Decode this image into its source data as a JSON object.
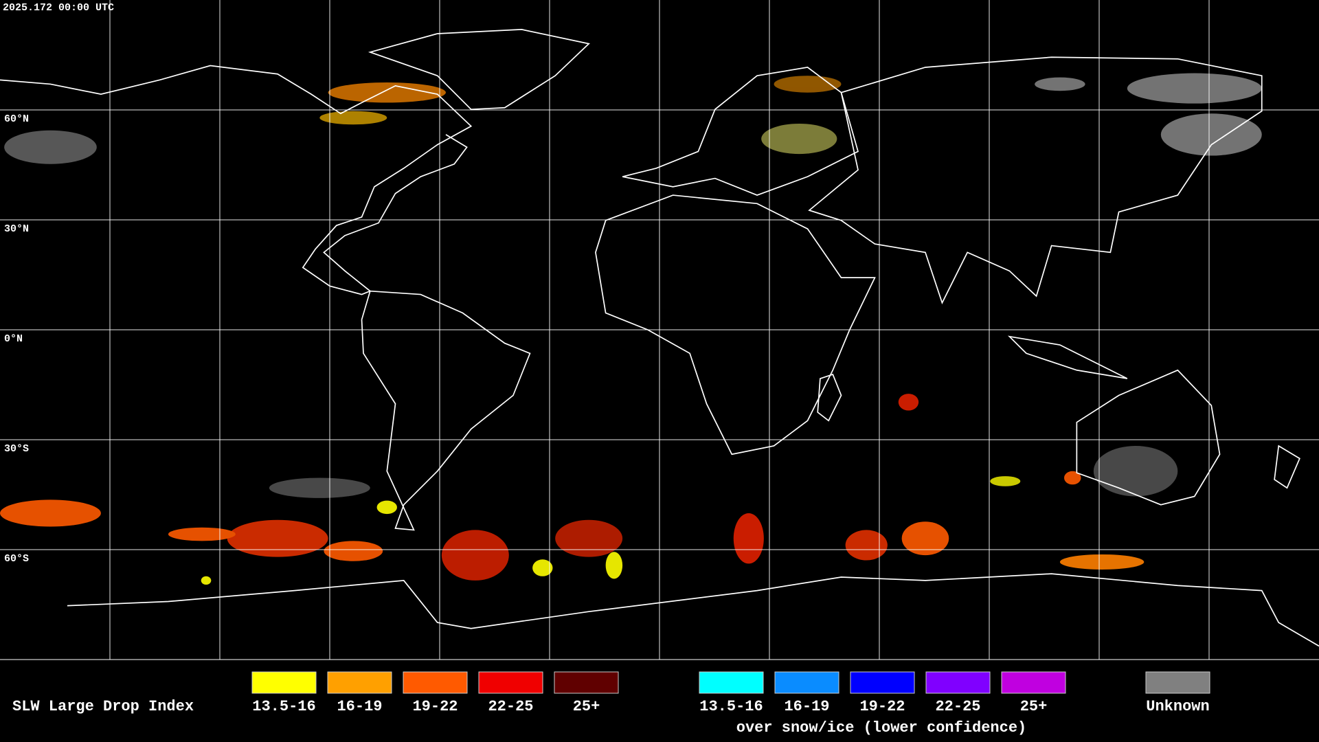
{
  "timestamp": "2025.172 00:00 UTC",
  "latitude_labels": [
    "60°N",
    "30°N",
    "0°N",
    "30°S",
    "60°S"
  ],
  "legend": {
    "title": "SLW Large Drop Index",
    "items": [
      {
        "label": "13.5-16",
        "color": "#ffff00"
      },
      {
        "label": "16-19",
        "color": "#ffa000"
      },
      {
        "label": "19-22",
        "color": "#ff5a00"
      },
      {
        "label": "22-25",
        "color": "#f00000"
      },
      {
        "label": "25+",
        "color": "#600000"
      }
    ],
    "snow_ice_items": [
      {
        "label": "13.5-16",
        "color": "#00ffff"
      },
      {
        "label": "16-19",
        "color": "#0a8cff"
      },
      {
        "label": "19-22",
        "color": "#0000ff"
      },
      {
        "label": "22-25",
        "color": "#8000ff"
      },
      {
        "label": "25+",
        "color": "#c000e0"
      }
    ],
    "snow_ice_note": "over snow/ice (lower confidence)",
    "unknown": {
      "label": "Unknown",
      "color": "#808080"
    }
  }
}
